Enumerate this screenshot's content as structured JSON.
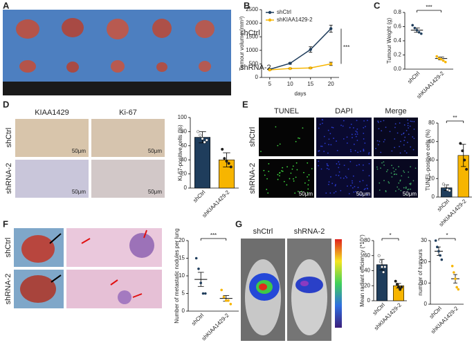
{
  "panels": {
    "letters": [
      "A",
      "B",
      "C",
      "D",
      "E",
      "F",
      "G"
    ],
    "A": {
      "rows": [
        "shCtrl",
        "shRNA-2"
      ]
    },
    "D": {
      "columns": [
        "KIAA1429",
        "Ki-67"
      ],
      "rows": [
        "shCtrl",
        "shRNA-2"
      ],
      "scale": "50μm"
    },
    "E": {
      "columns": [
        "TUNEL",
        "DAPI",
        "Merge"
      ],
      "rows": [
        "shCtrl",
        "shRNA-2"
      ],
      "scale": "50μm"
    },
    "F": {
      "rows": [
        "shCtrl",
        "shRNA-2"
      ]
    },
    "G": {
      "columns": [
        "shCtrl",
        "shRNA-2"
      ]
    }
  },
  "chart_data": [
    {
      "type": "line",
      "ylabel": "Tumour volume (mm³)",
      "xlabel": "days",
      "significance": "***",
      "x": [
        5,
        10,
        15,
        20
      ],
      "xlim": [
        3,
        22
      ],
      "xticks": [
        5,
        10,
        15,
        20
      ],
      "ylim": [
        0,
        2500
      ],
      "yticks": [
        0,
        500,
        1000,
        1500,
        2000,
        2500
      ],
      "series": [
        {
          "name": "shCtrl",
          "color": "#1f3d5c",
          "values": [
            300,
            520,
            1030,
            1800
          ],
          "errors": [
            20,
            30,
            100,
            130
          ]
        },
        {
          "name": "shKIAA1429-2",
          "color": "#f7b500",
          "values": [
            280,
            330,
            350,
            500
          ],
          "errors": [
            15,
            20,
            25,
            60
          ]
        }
      ]
    },
    {
      "type": "strip",
      "ylabel": "Tumour Weight (g)",
      "significance": "***",
      "categories": [
        "shCtrl",
        "shKIAA1429-2"
      ],
      "colors": [
        "#1f3d5c",
        "#f7b500"
      ],
      "values": [
        0.55,
        0.15
      ],
      "errors": [
        0.03,
        0.02
      ],
      "points": [
        [
          0.62,
          0.58,
          0.55,
          0.52,
          0.5
        ],
        [
          0.18,
          0.15,
          0.14,
          0.12,
          0.1
        ]
      ],
      "ylim": [
        0,
        0.8
      ],
      "yticks": [
        {
          "value": 0,
          "label": "0.0"
        },
        0.2,
        0.4,
        0.6,
        0.8
      ]
    },
    {
      "type": "bar",
      "ylabel": "Ki-67-positive cells (%)",
      "categories": [
        "shCtrl",
        "shKIAA1429-2"
      ],
      "colors": [
        "#1f3d5c",
        "#f7b500"
      ],
      "values": [
        72,
        40
      ],
      "errors": [
        8,
        10
      ],
      "points": [
        [
          80,
          75,
          70,
          65,
          68
        ],
        [
          55,
          42,
          38,
          35,
          30
        ]
      ],
      "ylim": [
        0,
        100
      ],
      "yticks": [
        0,
        20,
        40,
        60,
        80,
        100
      ]
    },
    {
      "type": "bar",
      "ylabel": "TUNEL-positive cells (%)",
      "significance": "**",
      "categories": [
        "shCtrl",
        "shKIAA1429-2"
      ],
      "colors": [
        "#1f3d5c",
        "#f7b500"
      ],
      "values": [
        10,
        45
      ],
      "errors": [
        3,
        12
      ],
      "points": [
        [
          14,
          12,
          8,
          7
        ],
        [
          58,
          50,
          40,
          30
        ]
      ],
      "ylim": [
        0,
        80
      ],
      "yticks": [
        0,
        20,
        40,
        60,
        80
      ]
    },
    {
      "type": "strip",
      "ylabel": "Number of metastatic nodules per lung",
      "significance": "***",
      "categories": [
        "shCtrl",
        "shKIAA1429-2"
      ],
      "colors": [
        "#1f3d5c",
        "#f7b500"
      ],
      "values": [
        9,
        3.6
      ],
      "errors": [
        2,
        0.8
      ],
      "points": [
        [
          15,
          12,
          8,
          5,
          5
        ],
        [
          6,
          4,
          3,
          3,
          2
        ]
      ],
      "ylim": [
        0,
        20
      ],
      "yticks": [
        0,
        5,
        10,
        15,
        20
      ]
    },
    {
      "type": "bar",
      "ylabel": "Mean radiant efficiency (*10⁷)",
      "significance": "*",
      "categories": [
        "shCtrl",
        "shKIAA1429-2"
      ],
      "colors": [
        "#1f3d5c",
        "#f7b500"
      ],
      "values": [
        48,
        20
      ],
      "errors": [
        7,
        3
      ],
      "points": [
        [
          60,
          52,
          45,
          38,
          45
        ],
        [
          26,
          22,
          18,
          15,
          18
        ]
      ],
      "ylim": [
        0,
        80
      ],
      "yticks": [
        0,
        20,
        40,
        60,
        80
      ]
    },
    {
      "type": "strip",
      "ylabel": "number of tumours",
      "significance": "*",
      "categories": [
        "shCtrl",
        "shKIAA1429-2"
      ],
      "colors": [
        "#1f3d5c",
        "#f7b500"
      ],
      "values": [
        25,
        12
      ],
      "errors": [
        2,
        2
      ],
      "points": [
        [
          30,
          27,
          25,
          23,
          21
        ],
        [
          18,
          15,
          12,
          8,
          7
        ]
      ],
      "ylim": [
        0,
        30
      ],
      "yticks": [
        0,
        10,
        20,
        30
      ]
    }
  ]
}
